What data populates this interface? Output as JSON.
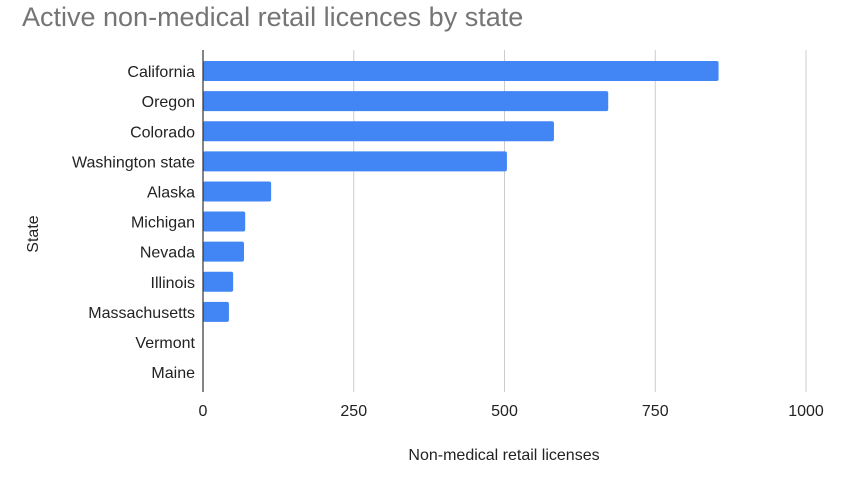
{
  "chart_data": {
    "type": "bar",
    "orientation": "horizontal",
    "title": "Active non-medical retail licences by state",
    "xlabel": "Non-medical retail licenses",
    "ylabel": "State",
    "categories": [
      "California",
      "Oregon",
      "Colorado",
      "Washington state",
      "Alaska",
      "Michigan",
      "Nevada",
      "Illinois",
      "Massachusetts",
      "Vermont",
      "Maine"
    ],
    "values": [
      855,
      672,
      582,
      504,
      113,
      70,
      68,
      50,
      43,
      0,
      0
    ],
    "xlim": [
      0,
      1000
    ],
    "xticks": [
      "0",
      "250",
      "500",
      "750",
      "1000"
    ],
    "xtick_values": [
      0,
      250,
      500,
      750,
      1000
    ],
    "grid": true,
    "bar_color": "#4285f4",
    "grid_color": "#cccccc"
  }
}
